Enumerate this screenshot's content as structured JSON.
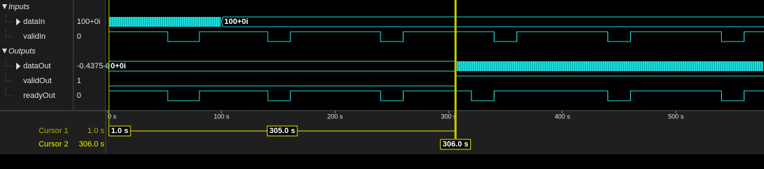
{
  "time_axis": {
    "range": [
      0,
      577.5
    ],
    "ticks": [
      {
        "value": 0,
        "label": "0 s"
      },
      {
        "value": 100,
        "label": "100 s"
      },
      {
        "value": 200,
        "label": "200 s"
      },
      {
        "value": 300,
        "label": "300 s"
      },
      {
        "value": 400,
        "label": "400 s"
      },
      {
        "value": 500,
        "label": "500 s"
      }
    ]
  },
  "groups": [
    {
      "title": "Inputs",
      "signals": [
        {
          "name": "dataIn",
          "value": "100+0i",
          "kind": "bus",
          "segments": [
            {
              "start": 0,
              "dense": true
            },
            {
              "start": 100,
              "label": "100+0i"
            }
          ]
        },
        {
          "name": "validIn",
          "value": "0",
          "kind": "digital",
          "initial": 1,
          "edges": [
            52.7,
            80.6,
            140.8,
            160.7,
            240,
            260,
            340,
            360,
            440,
            460,
            540,
            560
          ]
        }
      ]
    },
    {
      "title": "Outputs",
      "signals": [
        {
          "name": "dataOut",
          "value": "-0.4375-0",
          "kind": "bus",
          "segments": [
            {
              "start": 0,
              "label": "0+0i"
            },
            {
              "start": 306,
              "dense": true
            }
          ]
        },
        {
          "name": "validOut",
          "value": "1",
          "kind": "digital",
          "initial": 0,
          "edges": [
            306
          ]
        },
        {
          "name": "readyOut",
          "value": "0",
          "kind": "digital",
          "initial": 1,
          "edges": [
            52.7,
            80.6,
            140.8,
            160.7,
            240,
            260,
            320,
            340,
            440,
            460,
            540,
            560
          ]
        }
      ]
    }
  ],
  "cursors": [
    {
      "name": "Cursor 1",
      "time": {
        "value": 1.0,
        "label": "1.0 s"
      }
    },
    {
      "name": "Cursor 2",
      "time": {
        "value": 306.0,
        "label": "306.0 s"
      }
    }
  ],
  "delta": {
    "value": 305.0,
    "label": "305.0 s"
  }
}
